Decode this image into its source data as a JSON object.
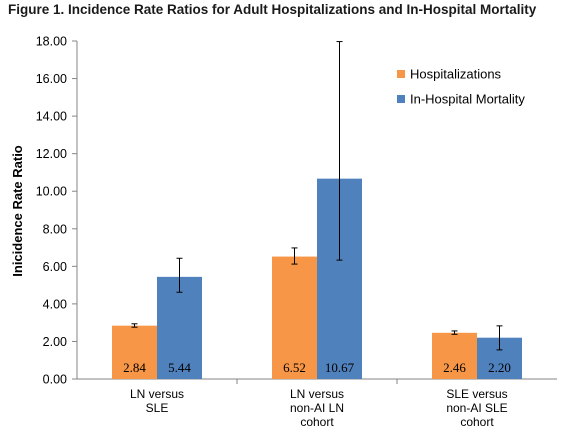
{
  "chart_data": {
    "type": "bar",
    "title": "Figure 1. Incidence Rate Ratios for Adult Hospitalizations and In-Hospital Mortality",
    "ylabel": "Inicidence Rate Ratio",
    "xlabel": "",
    "ylim": [
      0,
      18
    ],
    "yticks": [
      "0.00",
      "2.00",
      "4.00",
      "6.00",
      "8.00",
      "10.00",
      "12.00",
      "14.00",
      "16.00",
      "18.00"
    ],
    "categories": [
      [
        "LN versus",
        "SLE"
      ],
      [
        "LN versus",
        "non-AI LN",
        "cohort"
      ],
      [
        "SLE versus",
        "non-AI SLE",
        "cohort"
      ]
    ],
    "series": [
      {
        "name": "Hospitalizations",
        "color": "#F79646",
        "values": [
          2.84,
          6.52,
          2.46
        ],
        "labels": [
          "2.84",
          "6.52",
          "2.46"
        ],
        "err_low": [
          2.76,
          6.12,
          2.38
        ],
        "err_high": [
          2.94,
          6.98,
          2.56
        ]
      },
      {
        "name": "In-Hospital Mortality",
        "color": "#4F81BD",
        "values": [
          5.44,
          10.67,
          2.2
        ],
        "labels": [
          "5.44",
          "10.67",
          "2.20"
        ],
        "err_low": [
          4.62,
          6.33,
          1.55
        ],
        "err_high": [
          6.43,
          17.97,
          2.83
        ]
      }
    ],
    "legend_position": "top-right",
    "grid": false
  }
}
